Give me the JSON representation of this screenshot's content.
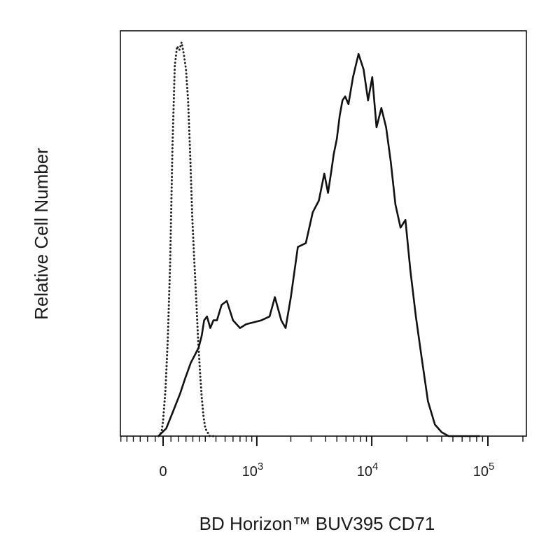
{
  "chart_data": {
    "type": "line",
    "chart_kind": "flow cytometry histogram",
    "xlabel": "BD Horizon™ BUV395 CD71",
    "ylabel": "Relative Cell Number",
    "x_scale": "biexponential (linear near 0, log above)",
    "xlim": [
      -300,
      200000
    ],
    "ylim": [
      0,
      105
    ],
    "grid": false,
    "legend": "none",
    "x_tick_labels": [
      {
        "value": 0,
        "base": "0",
        "exp": ""
      },
      {
        "value": 1000,
        "base": "10",
        "exp": "3"
      },
      {
        "value": 10000,
        "base": "10",
        "exp": "4"
      },
      {
        "value": 100000,
        "base": "10",
        "exp": "5"
      }
    ],
    "series": [
      {
        "style": "dotted",
        "color": "#222222",
        "x": [
          -30,
          -10,
          0,
          15,
          30,
          45,
          60,
          75,
          90,
          105,
          120,
          135,
          150,
          165,
          180,
          195,
          210,
          225,
          240,
          255,
          270,
          285,
          300,
          320,
          340,
          360,
          380,
          400
        ],
        "y": [
          0,
          1,
          4,
          12,
          25,
          45,
          75,
          96,
          101,
          100,
          102,
          99,
          95,
          87,
          73,
          57,
          46,
          36,
          25,
          17,
          10,
          5,
          2,
          1,
          0,
          0,
          0,
          0
        ]
      },
      {
        "style": "solid",
        "color": "#111111",
        "x": [
          -30,
          20,
          60,
          110,
          145,
          185,
          215,
          245,
          270,
          290,
          315,
          345,
          375,
          410,
          460,
          520,
          600,
          700,
          800,
          1100,
          1300,
          1450,
          1650,
          1800,
          2000,
          2300,
          2700,
          3100,
          3500,
          3900,
          4200,
          4500,
          4700,
          5000,
          5300,
          5600,
          5900,
          6300,
          6900,
          7700,
          8500,
          9300,
          10100,
          11000,
          12100,
          13300,
          14600,
          16000,
          17700,
          19500,
          21500,
          24000,
          27000,
          30500,
          35000,
          40000,
          46000,
          53000,
          62000,
          72000,
          85000
        ],
        "y": [
          0,
          2,
          6,
          11,
          15,
          19,
          21,
          23,
          26,
          30,
          31,
          28,
          30,
          30,
          34,
          35,
          30,
          28,
          29,
          30,
          31,
          36,
          30,
          28,
          36,
          49,
          50,
          58,
          61,
          68,
          63,
          69,
          73,
          77,
          83,
          87,
          88,
          86,
          93,
          99,
          95,
          87,
          93,
          80,
          85,
          80,
          71,
          60,
          54,
          56,
          43,
          31,
          20,
          9,
          3,
          1,
          0,
          0,
          0,
          0,
          0
        ]
      }
    ]
  }
}
